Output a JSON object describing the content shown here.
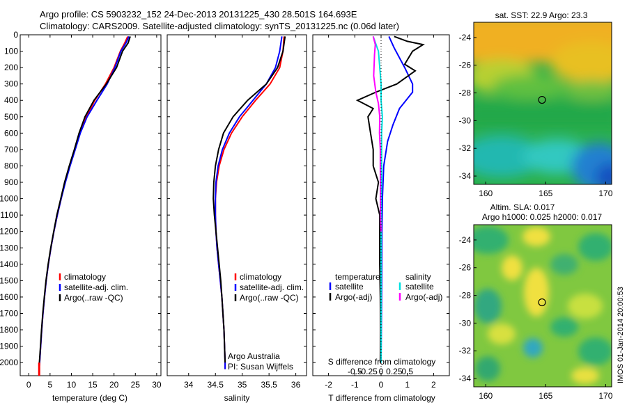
{
  "header": {
    "line1": "Argo profile: CS 5903232_152 24-Dec-2013 20131225_430 28.501S 164.693E",
    "line2": "Climatology: CARS2009. Satellite-adjusted climatology: synTS_20131225.nc (0.06d later)"
  },
  "colors": {
    "climatology": "#ff0000",
    "satellite": "#0000ff",
    "argo": "#000000",
    "sat_salinity": "#00e0e0",
    "argo_salinity": "#ff00ff"
  },
  "chart_data": [
    {
      "type": "line",
      "xlabel": "temperature (deg C)",
      "xlim": [
        -2,
        31
      ],
      "xticks": [
        0,
        5,
        10,
        15,
        20,
        25,
        30
      ],
      "xtick_labels": [
        "0",
        "5",
        "10",
        "15",
        "20",
        "25",
        "30"
      ],
      "ylim": [
        2080,
        0
      ],
      "yticks": [
        0,
        100,
        200,
        300,
        400,
        500,
        600,
        700,
        800,
        900,
        1000,
        1100,
        1200,
        1300,
        1400,
        1500,
        1600,
        1700,
        1800,
        1900,
        2000
      ],
      "ytick_labels": [
        "0",
        "100",
        "200",
        "300",
        "400",
        "500",
        "600",
        "700",
        "800",
        "900",
        "1000",
        "1100",
        "1200",
        "1300",
        "1400",
        "1500",
        "1600",
        "1700",
        "1800",
        "1900",
        "2000"
      ],
      "legend": [
        "climatology",
        "satellite-adj. clim.",
        "Argo(..raw -QC)"
      ],
      "legend_position": "lower-center",
      "series": [
        {
          "name": "climatology",
          "color": "#ff0000",
          "points": [
            [
              23.2,
              10
            ],
            [
              22.5,
              50
            ],
            [
              21.5,
              100
            ],
            [
              20,
              200
            ],
            [
              18,
              300
            ],
            [
              15.5,
              400
            ],
            [
              13.5,
              500
            ],
            [
              12,
              600
            ],
            [
              10.8,
              700
            ],
            [
              9.6,
              800
            ],
            [
              8.5,
              900
            ],
            [
              7.6,
              1000
            ],
            [
              6.7,
              1100
            ],
            [
              5.9,
              1200
            ],
            [
              5.2,
              1300
            ],
            [
              4.6,
              1400
            ],
            [
              4.1,
              1500
            ],
            [
              3.7,
              1600
            ],
            [
              3.35,
              1700
            ],
            [
              3.05,
              1800
            ],
            [
              2.8,
              1900
            ],
            [
              2.55,
              2000
            ],
            [
              2.45,
              2040
            ]
          ]
        },
        {
          "name": "satellite-adj. clim.",
          "color": "#0000ff",
          "points": [
            [
              23.5,
              10
            ],
            [
              22.8,
              50
            ],
            [
              21.6,
              100
            ],
            [
              20.2,
              200
            ],
            [
              18.4,
              300
            ],
            [
              16,
              400
            ],
            [
              13.7,
              500
            ],
            [
              12.1,
              600
            ],
            [
              10.9,
              700
            ],
            [
              9.7,
              800
            ],
            [
              8.6,
              900
            ],
            [
              7.6,
              1000
            ],
            [
              6.7,
              1100
            ],
            [
              5.9,
              1200
            ],
            [
              5.2,
              1300
            ],
            [
              4.6,
              1400
            ],
            [
              4.1,
              1500
            ],
            [
              3.7,
              1600
            ],
            [
              3.35,
              1700
            ],
            [
              3.05,
              1800
            ],
            [
              2.8,
              1900
            ],
            [
              2.55,
              2000
            ],
            [
              2.45,
              2040
            ]
          ]
        },
        {
          "name": "Argo(..raw -QC)",
          "color": "#000000",
          "points": [
            [
              23.8,
              10
            ],
            [
              23.3,
              50
            ],
            [
              22,
              100
            ],
            [
              20.6,
              200
            ],
            [
              18.2,
              300
            ],
            [
              15.3,
              400
            ],
            [
              13.2,
              500
            ],
            [
              11.8,
              600
            ],
            [
              10.7,
              700
            ],
            [
              9.5,
              800
            ],
            [
              8.4,
              900
            ],
            [
              7.5,
              1000
            ],
            [
              6.6,
              1100
            ],
            [
              5.85,
              1200
            ],
            [
              5.15,
              1300
            ],
            [
              4.55,
              1400
            ],
            [
              4.05,
              1500
            ],
            [
              3.65,
              1600
            ],
            [
              3.3,
              1700
            ],
            [
              3,
              1800
            ],
            [
              2.75,
              1900
            ],
            [
              2.5,
              2000
            ]
          ]
        }
      ]
    },
    {
      "type": "line",
      "xlabel": "salinity",
      "xlim": [
        33.6,
        36.2
      ],
      "xticks": [
        34,
        34.5,
        35,
        35.5,
        36
      ],
      "xtick_labels": [
        "34",
        "34.5",
        "35",
        "35.5",
        "36"
      ],
      "ylim": [
        2080,
        0
      ],
      "yticks": [],
      "legend": [
        "climatology",
        "satellite-adj. clim.",
        "Argo(..raw -QC)"
      ],
      "legend_position": "lower-center",
      "annotation": [
        "Argo Australia",
        "PI: Susan Wijffels"
      ],
      "series": [
        {
          "name": "climatology",
          "color": "#ff0000",
          "points": [
            [
              35.78,
              10
            ],
            [
              35.76,
              100
            ],
            [
              35.7,
              200
            ],
            [
              35.52,
              300
            ],
            [
              35.25,
              400
            ],
            [
              35,
              500
            ],
            [
              34.8,
              600
            ],
            [
              34.66,
              700
            ],
            [
              34.57,
              800
            ],
            [
              34.52,
              900
            ],
            [
              34.5,
              1000
            ],
            [
              34.5,
              1100
            ],
            [
              34.51,
              1200
            ],
            [
              34.53,
              1300
            ],
            [
              34.56,
              1400
            ],
            [
              34.59,
              1500
            ],
            [
              34.62,
              1600
            ],
            [
              34.64,
              1700
            ],
            [
              34.66,
              1800
            ],
            [
              34.67,
              1900
            ],
            [
              34.68,
              2000
            ],
            [
              34.68,
              2040
            ]
          ]
        },
        {
          "name": "satellite-adj. clim.",
          "color": "#0000ff",
          "points": [
            [
              35.74,
              10
            ],
            [
              35.7,
              100
            ],
            [
              35.62,
              200
            ],
            [
              35.45,
              300
            ],
            [
              35.2,
              400
            ],
            [
              34.95,
              500
            ],
            [
              34.76,
              600
            ],
            [
              34.63,
              700
            ],
            [
              34.55,
              800
            ],
            [
              34.51,
              900
            ],
            [
              34.5,
              1000
            ],
            [
              34.5,
              1100
            ],
            [
              34.51,
              1200
            ],
            [
              34.53,
              1300
            ],
            [
              34.56,
              1400
            ],
            [
              34.59,
              1500
            ],
            [
              34.62,
              1600
            ],
            [
              34.64,
              1700
            ],
            [
              34.66,
              1800
            ],
            [
              34.67,
              1900
            ],
            [
              34.68,
              2000
            ],
            [
              34.68,
              2040
            ]
          ]
        },
        {
          "name": "Argo(..raw -QC)",
          "color": "#000000",
          "points": [
            [
              35.8,
              10
            ],
            [
              35.76,
              100
            ],
            [
              35.66,
              200
            ],
            [
              35.45,
              300
            ],
            [
              35.1,
              400
            ],
            [
              34.83,
              500
            ],
            [
              34.65,
              600
            ],
            [
              34.56,
              700
            ],
            [
              34.5,
              800
            ],
            [
              34.47,
              900
            ],
            [
              34.46,
              1000
            ],
            [
              34.48,
              1100
            ],
            [
              34.51,
              1200
            ],
            [
              34.54,
              1300
            ],
            [
              34.57,
              1400
            ],
            [
              34.6,
              1500
            ],
            [
              34.62,
              1600
            ],
            [
              34.64,
              1700
            ],
            [
              34.66,
              1800
            ],
            [
              34.67,
              1900
            ],
            [
              34.68,
              2000
            ]
          ]
        }
      ]
    },
    {
      "type": "line",
      "xlabel": "T difference from climatology",
      "xlabel_top": "S difference from climatology",
      "xlim": [
        -2.6,
        2.6
      ],
      "xticks": [
        -2,
        -1,
        0,
        1,
        2
      ],
      "xtick_labels": [
        "-2",
        "-1",
        "0",
        "1",
        "2"
      ],
      "sticks": [
        -0.5,
        -0.25,
        0,
        0.25,
        0.5
      ],
      "stick_labels": [
        "-0.5",
        "-0.25",
        "0",
        "0.25",
        "0.5"
      ],
      "ylim": [
        2080,
        0
      ],
      "yticks": [],
      "legend_groups": [
        {
          "title": "temperature",
          "items": [
            "satellite",
            "Argo(-adj)"
          ]
        },
        {
          "title": "salinity",
          "items": [
            "satellite",
            "Argo(-adj)"
          ]
        }
      ],
      "series": [
        {
          "name": "temperature satellite",
          "color": "#0000ff",
          "points": [
            [
              0.3,
              10
            ],
            [
              0.5,
              80
            ],
            [
              0.9,
              200
            ],
            [
              1.2,
              300
            ],
            [
              1.2,
              350
            ],
            [
              0.7,
              450
            ],
            [
              0.45,
              550
            ],
            [
              0.25,
              650
            ],
            [
              0.1,
              800
            ],
            [
              0.05,
              1000
            ],
            [
              0.03,
              1200
            ],
            [
              0.02,
              1500
            ],
            [
              0,
              2000
            ]
          ]
        },
        {
          "name": "temperature Argo(-adj)",
          "color": "#000000",
          "points": [
            [
              0.5,
              10
            ],
            [
              1.0,
              40
            ],
            [
              1.6,
              60
            ],
            [
              1.2,
              100
            ],
            [
              0.9,
              180
            ],
            [
              1.3,
              220
            ],
            [
              0.6,
              300
            ],
            [
              -0.2,
              350
            ],
            [
              -0.9,
              400
            ],
            [
              -0.3,
              450
            ],
            [
              -0.5,
              500
            ],
            [
              -0.4,
              600
            ],
            [
              -0.3,
              700
            ],
            [
              -0.3,
              800
            ],
            [
              -0.1,
              900
            ],
            [
              -0.2,
              1000
            ],
            [
              -0.05,
              1100
            ],
            [
              -0.05,
              1200
            ],
            [
              -0.05,
              1400
            ],
            [
              -0.03,
              1600
            ],
            [
              -0.02,
              1800
            ],
            [
              -0.03,
              2000
            ]
          ]
        },
        {
          "name": "salinity satellite",
          "color": "#00e0e0",
          "points": [
            [
              -0.3,
              10
            ],
            [
              -0.1,
              100
            ],
            [
              -0.05,
              200
            ],
            [
              0,
              300
            ],
            [
              0,
              400
            ],
            [
              0.05,
              500
            ],
            [
              0.02,
              600
            ],
            [
              0.02,
              800
            ],
            [
              0,
              1000
            ],
            [
              0,
              1300
            ],
            [
              0,
              1600
            ],
            [
              0,
              2000
            ]
          ]
        },
        {
          "name": "salinity Argo(-adj)",
          "color": "#ff00ff",
          "points": [
            [
              -0.3,
              10
            ],
            [
              -0.22,
              60
            ],
            [
              -0.25,
              120
            ],
            [
              -0.28,
              250
            ],
            [
              -0.2,
              350
            ],
            [
              -0.1,
              420
            ],
            [
              -0.05,
              500
            ],
            [
              -0.06,
              600
            ],
            [
              -0.03,
              700
            ],
            [
              -0.03,
              800
            ],
            [
              -0.02,
              1000
            ],
            [
              -0.02,
              1100
            ],
            [
              0,
              1200
            ]
          ]
        }
      ]
    },
    {
      "type": "heatmap",
      "title": "sat. SST: 22.9  Argo: 23.3",
      "xlim": [
        159,
        170.5
      ],
      "ylim": [
        -34.6,
        -22.9
      ],
      "xticks": [
        160,
        165,
        170
      ],
      "xtick_labels": [
        "160",
        "165",
        "170"
      ],
      "yticks": [
        -24,
        -26,
        -28,
        -30,
        -32,
        -34
      ],
      "ytick_labels": [
        "-24",
        "-26",
        "-28",
        "-30",
        "-32",
        "-34"
      ],
      "marker": [
        164.693,
        -28.501
      ]
    },
    {
      "type": "heatmap",
      "title": "Altim. SLA: 0.017",
      "subtitle": "Argo h1000: 0.025 h2000: 0.017",
      "xlim": [
        159,
        170.5
      ],
      "ylim": [
        -34.6,
        -22.9
      ],
      "xticks": [
        160,
        165,
        170
      ],
      "xtick_labels": [
        "160",
        "165",
        "170"
      ],
      "yticks": [
        -24,
        -26,
        -28,
        -30,
        -32,
        -34
      ],
      "ytick_labels": [
        "-24",
        "-26",
        "-28",
        "-30",
        "-32",
        "-34"
      ],
      "marker": [
        164.693,
        -28.501
      ]
    }
  ],
  "side_label": "IMOS 01-Jan-2014 20:00:53"
}
